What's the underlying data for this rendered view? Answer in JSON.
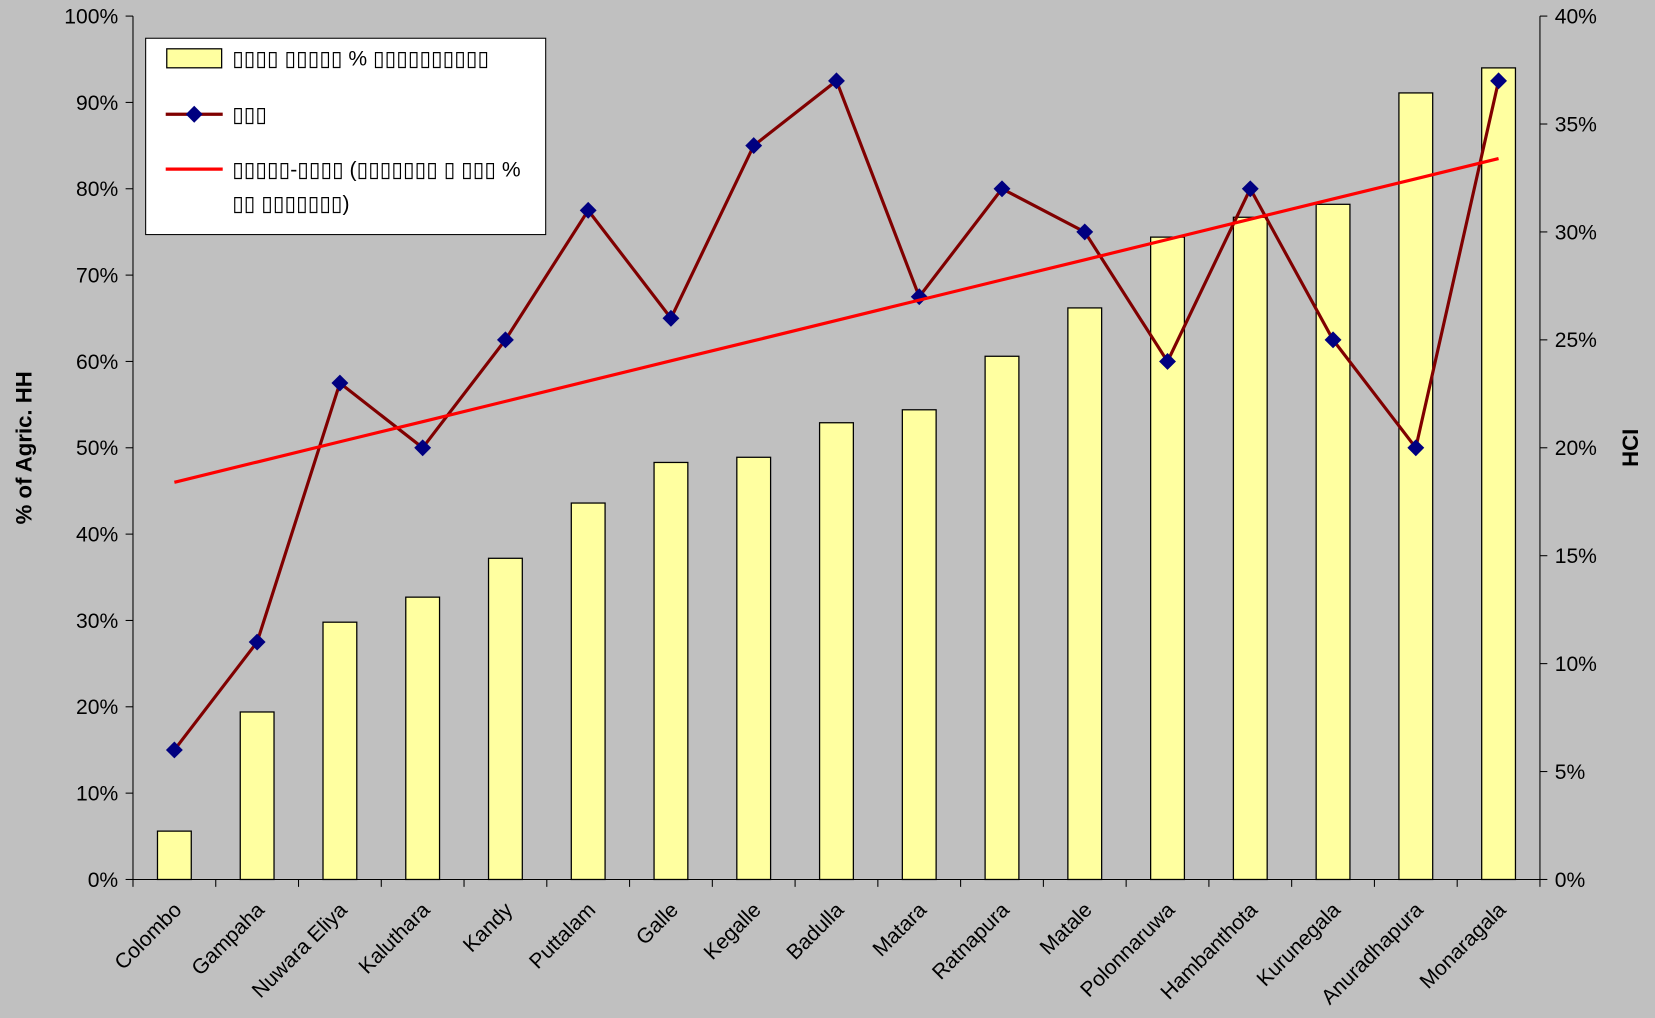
{
  "chart_data": {
    "type": "bar",
    "categories": [
      "Colombo",
      "Gampaha",
      "Nuwara Eliya",
      "Kaluthara",
      "Kandy",
      "Puttalam",
      "Galle",
      "Kegalle",
      "Badulla",
      "Matara",
      "Ratnapura",
      "Matale",
      "Polonnaruwa",
      "Hambanthota",
      "Kurunegala",
      "Anuradhapura",
      "Monaragala"
    ],
    "ylabel": "% of Agric. HH",
    "y2label": "HCI",
    "ylim": [
      0,
      100
    ],
    "yticks": [
      {
        "value": 0,
        "label": "0%"
      },
      {
        "value": 10,
        "label": "10%"
      },
      {
        "value": 20,
        "label": "20%"
      },
      {
        "value": 30,
        "label": "30%"
      },
      {
        "value": 40,
        "label": "40%"
      },
      {
        "value": 50,
        "label": "50%"
      },
      {
        "value": 60,
        "label": "60%"
      },
      {
        "value": 70,
        "label": "70%"
      },
      {
        "value": 80,
        "label": "80%"
      },
      {
        "value": 90,
        "label": "90%"
      },
      {
        "value": 100,
        "label": "100%"
      }
    ],
    "y2lim": [
      0,
      40
    ],
    "y2ticks": [
      {
        "value": 0,
        "label": "0%"
      },
      {
        "value": 5,
        "label": "5%"
      },
      {
        "value": 10,
        "label": "10%"
      },
      {
        "value": 15,
        "label": "15%"
      },
      {
        "value": 20,
        "label": "20%"
      },
      {
        "value": 25,
        "label": "25%"
      },
      {
        "value": 30,
        "label": "30%"
      },
      {
        "value": 35,
        "label": "35%"
      },
      {
        "value": 40,
        "label": "40%"
      }
    ],
    "legend": "upper left",
    "series": [
      {
        "name": "▯▯▯▯ ▯▯▯▯▯ % ▯▯▯▯▯▯▯▯▯▯",
        "type": "bar",
        "color": "#ffffa0",
        "values": [
          5.6,
          19.4,
          29.8,
          32.7,
          37.2,
          43.6,
          48.3,
          48.9,
          52.9,
          54.4,
          60.6,
          66.2,
          74.4,
          76.7,
          78.2,
          91.1,
          94.0
        ]
      },
      {
        "name": "▯▯▯",
        "type": "line",
        "axis": "y2",
        "color": "#800000",
        "marker_color": "#000080",
        "values": [
          6,
          11,
          23,
          20,
          25,
          31,
          26,
          34,
          37,
          27,
          32,
          30,
          24,
          32,
          25,
          20,
          37
        ]
      },
      {
        "name": "▯▯▯▯▯-▯▯▯▯ (▯▯▯▯▯▯▯ ▯ ▯▯▯ % ▯▯ ▯▯▯▯▯▯▯)",
        "type": "trend",
        "axis": "y2",
        "color": "#ff0000",
        "values": [
          18.4,
          19.34,
          20.28,
          21.21,
          22.15,
          23.09,
          24.03,
          24.96,
          25.9,
          26.84,
          27.78,
          28.71,
          29.65,
          30.59,
          31.53,
          32.46,
          33.4
        ]
      }
    ]
  }
}
